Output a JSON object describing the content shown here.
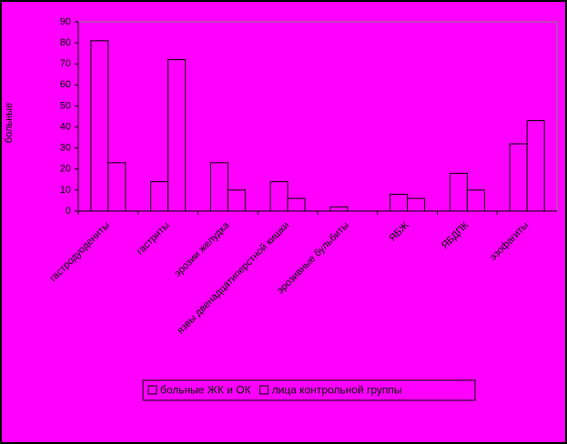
{
  "chart_data": {
    "type": "bar",
    "y_label": "больные",
    "categories": [
      "гастродуодениты",
      "гастриты",
      "эрозии желудка",
      "язвы двенадцатиперстной кишки",
      "эрозивные бульбиты",
      "ЯБЖ",
      "ЯБДПК",
      "эзофагиты"
    ],
    "series": [
      {
        "name": "больные ЖК и ОК",
        "color": "#ff00ff",
        "values": [
          81,
          14,
          23,
          14,
          2,
          8,
          18,
          32
        ]
      },
      {
        "name": "лица контрольной группы",
        "color": "#ff00ff",
        "values": [
          23,
          72,
          10,
          6,
          0,
          6,
          10,
          43
        ]
      }
    ],
    "ylim": [
      0,
      90
    ],
    "yticks": [
      0,
      10,
      20,
      30,
      40,
      50,
      60,
      70,
      80,
      90
    ],
    "grid": false
  }
}
